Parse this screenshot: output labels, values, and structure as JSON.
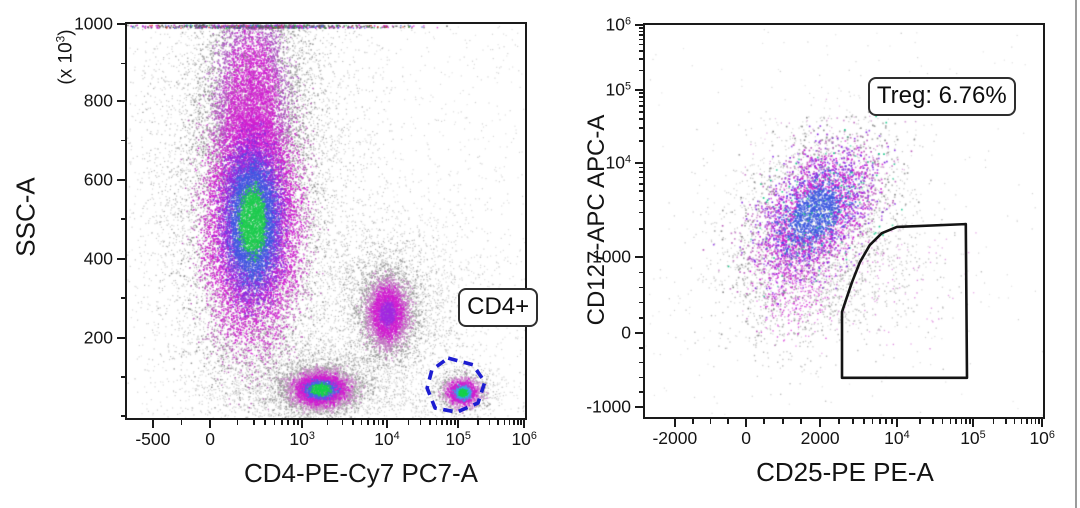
{
  "figure": {
    "type": "flow-cytometry-pseudocolor-dot-plots",
    "background": "#ffffff",
    "divider_color": "#9b9b9b",
    "frame_color": "#1a1a1a"
  },
  "left_plot": {
    "x_label": "CD4-PE-Cy7 PC7-A",
    "y_label": "SSC-A",
    "y_unit_label": "(x 10^3)",
    "gate_label": "CD4+"
  },
  "right_plot": {
    "x_label": "CD25-PE PE-A",
    "y_label": "CD127-APC APC-A",
    "gate_label": "Treg: 6.76%"
  },
  "chart_data": [
    {
      "id": "left",
      "type": "scatter",
      "subtype": "pseudocolor-density-dot-plot",
      "title": "",
      "xlabel": "CD4-PE-Cy7 PC7-A",
      "ylabel": "SSC-A (x 10^3)",
      "x_scale": "biexponential",
      "y_scale": "linear",
      "xlim_ticks": [
        "-500",
        "0",
        "10^3",
        "10^4",
        "10^5",
        "10^6"
      ],
      "ylim": [
        0,
        1000
      ],
      "x_tick_labels": [
        "-500",
        "0",
        "10^3",
        "10^4",
        "10^5",
        "10^6"
      ],
      "x_tick_f": [
        0.065,
        0.209,
        0.44,
        0.653,
        0.832,
        0.998
      ],
      "x_minor_f": [
        0.137,
        0.278,
        0.319,
        0.347,
        0.37,
        0.389,
        0.405,
        0.419,
        0.43,
        0.504,
        0.542,
        0.568,
        0.589,
        0.606,
        0.62,
        0.632,
        0.643,
        0.707,
        0.738,
        0.761,
        0.778,
        0.792,
        0.804,
        0.814,
        0.824,
        0.882,
        0.911,
        0.932,
        0.948,
        0.961,
        0.972,
        0.982,
        0.99
      ],
      "y_tick_labels": [
        "1000",
        "800",
        "600",
        "400",
        "200"
      ],
      "y_tick_f": [
        0.0,
        0.195,
        0.396,
        0.596,
        0.797
      ],
      "y_minor_f": [
        0.0997,
        0.2957,
        0.4955,
        0.6955,
        0.8965,
        0.995
      ],
      "seed": 1234,
      "populations": [
        {
          "name": "background-sparse",
          "kind": "uniform",
          "n": 1500,
          "bands": [
            [
              9,
              "#b3b3b3"
            ]
          ],
          "size": 1.2,
          "alpha": 0.5
        },
        {
          "name": "main-cloud-halo",
          "desc": "CD4 ~0-10^3, SSC 200-1000 x10^3 gray halo",
          "n": 7000,
          "fx": 0.314,
          "fy": 0.4,
          "sx": 0.135,
          "sy": 0.27,
          "bands": [
            [
              9,
              "#9c9c9c"
            ]
          ],
          "size": 1.2,
          "alpha": 0.55
        },
        {
          "name": "main-cloud-upper",
          "desc": "SSC 700-1000 x10^3 magenta column",
          "n": 6000,
          "fx": 0.312,
          "fy": 0.2,
          "sx": 0.058,
          "sy": 0.15,
          "bands": [
            [
              1.1,
              "#d01fd0"
            ],
            [
              1.7,
              "#a94fc0"
            ],
            [
              9,
              "#969696"
            ]
          ],
          "size": 1.5,
          "alpha": 0.8
        },
        {
          "name": "main-cloud-core",
          "desc": "center CD4 ~300, SSC ~560 x10^3, green core",
          "n": 12000,
          "fx": 0.314,
          "fy": 0.5,
          "sx": 0.06,
          "sy": 0.155,
          "bands": [
            [
              0.55,
              "#1ecb4f"
            ],
            [
              0.95,
              "#4356e2"
            ],
            [
              1.35,
              "#8d2be0"
            ],
            [
              2.05,
              "#d01fd0"
            ],
            [
              2.7,
              "#b95fb9"
            ],
            [
              9,
              "#8d8d8d"
            ]
          ],
          "size": 1.5,
          "alpha": 0.88
        },
        {
          "name": "bridge-below-cloud",
          "n": 1500,
          "fx": 0.33,
          "fy": 0.8,
          "sx": 0.1,
          "sy": 0.13,
          "bands": [
            [
              9,
              "#a0a0a0"
            ]
          ],
          "size": 1.2,
          "alpha": 0.5
        },
        {
          "name": "mid-population-halo",
          "desc": "CD4 ~10^4, SSC ~270 x10^3",
          "n": 2400,
          "fx": 0.653,
          "fy": 0.728,
          "sx": 0.072,
          "sy": 0.1,
          "bands": [
            [
              9,
              "#979797"
            ]
          ],
          "size": 1.2,
          "alpha": 0.55
        },
        {
          "name": "mid-population-core",
          "desc": "CD4 ~10^4, SSC ~270 x10^3 magenta",
          "n": 3000,
          "fx": 0.653,
          "fy": 0.733,
          "sx": 0.03,
          "sy": 0.048,
          "bands": [
            [
              0.65,
              "#a22ae0"
            ],
            [
              1.35,
              "#d01fd0"
            ],
            [
              2.1,
              "#c478c4"
            ],
            [
              9,
              "#9a9a9a"
            ]
          ],
          "size": 1.5,
          "alpha": 0.88
        },
        {
          "name": "low-ssc-population-halo",
          "desc": "CD4 ~1.5x10^3, SSC ~85 x10^3",
          "n": 2000,
          "fx": 0.483,
          "fy": 0.915,
          "sx": 0.085,
          "sy": 0.05,
          "bands": [
            [
              9,
              "#9a9a9a"
            ]
          ],
          "size": 1.2,
          "alpha": 0.5
        },
        {
          "name": "low-ssc-population-core",
          "n": 3800,
          "fx": 0.485,
          "fy": 0.926,
          "sx": 0.042,
          "sy": 0.025,
          "bands": [
            [
              0.6,
              "#17d24a"
            ],
            [
              0.95,
              "#4a62e8"
            ],
            [
              1.6,
              "#d01fd0"
            ],
            [
              2.3,
              "#c788c7"
            ],
            [
              9,
              "#9a9a9a"
            ]
          ],
          "size": 1.6,
          "alpha": 0.9
        },
        {
          "name": "bottom-band-sparse",
          "n": 800,
          "fx": 0.55,
          "fy": 0.945,
          "sx": 0.22,
          "sy": 0.035,
          "bands": [
            [
              9,
              "#a6a6a6"
            ]
          ],
          "size": 1.2,
          "alpha": 0.45
        },
        {
          "name": "mid-right-sparse",
          "n": 800,
          "fx": 0.75,
          "fy": 0.7,
          "sx": 0.12,
          "sy": 0.16,
          "bands": [
            [
              9,
              "#a6a6a6"
            ]
          ],
          "size": 1.2,
          "alpha": 0.45
        },
        {
          "name": "cd4pos-halo",
          "desc": "CD4 ~10^5, SSC ~80 x10^3",
          "n": 600,
          "fx": 0.842,
          "fy": 0.928,
          "sx": 0.045,
          "sy": 0.038,
          "bands": [
            [
              9,
              "#9a9a9a"
            ]
          ],
          "size": 1.2,
          "alpha": 0.5
        },
        {
          "name": "cd4pos-core",
          "desc": "gated CD4+ population",
          "n": 1400,
          "fx": 0.842,
          "fy": 0.934,
          "sx": 0.023,
          "sy": 0.019,
          "bands": [
            [
              0.55,
              "#17d24a"
            ],
            [
              0.95,
              "#35a8e8"
            ],
            [
              1.6,
              "#d01fd0"
            ],
            [
              2.4,
              "#cf8ccf"
            ],
            [
              9,
              "#9a9a9a"
            ]
          ],
          "size": 1.6,
          "alpha": 0.9
        },
        {
          "name": "axis-pileup-top",
          "kind": "edge_top",
          "desc": "events at SSC max 1000 x10^3",
          "n": 700,
          "fx": 0.33,
          "sx": 0.16,
          "mix": [
            [
              0.45,
              "#5a5a5a"
            ],
            [
              0.7,
              "#d01fd0"
            ],
            [
              0.78,
              "#19c24a"
            ],
            [
              0.85,
              "#e0392a"
            ],
            [
              1.01,
              "#4356e2"
            ]
          ],
          "size": 1.5,
          "alpha": 0.85
        }
      ],
      "gates": [
        {
          "label": "CD4+",
          "shape": "polygon",
          "style": "dashed",
          "stroke": "#1d1dd1",
          "stroke_width": 3.6,
          "points_f": [
            [
              0.807,
              0.848
            ],
            [
              0.869,
              0.865
            ],
            [
              0.899,
              0.909
            ],
            [
              0.882,
              0.962
            ],
            [
              0.829,
              0.985
            ],
            [
              0.774,
              0.975
            ],
            [
              0.754,
              0.924
            ],
            [
              0.766,
              0.878
            ]
          ],
          "label_f": [
            0.832,
            0.67
          ]
        }
      ]
    },
    {
      "id": "right",
      "type": "scatter",
      "subtype": "pseudocolor-density-dot-plot",
      "title": "",
      "xlabel": "CD25-PE PE-A",
      "ylabel": "CD127-APC APC-A",
      "x_scale": "biexponential",
      "y_scale": "biexponential",
      "stat": {
        "label": "Treg",
        "value_percent": 6.76
      },
      "x_tick_labels": [
        "-2000",
        "0",
        "2000",
        "10^4",
        "10^5",
        "10^6"
      ],
      "x_tick_f": [
        0.075,
        0.254,
        0.44,
        0.633,
        0.824,
        0.998
      ],
      "x_minor_f": [
        0.12,
        0.165,
        0.209,
        0.299,
        0.347,
        0.392,
        0.488,
        0.523,
        0.55,
        0.572,
        0.59,
        0.606,
        0.62,
        0.691,
        0.724,
        0.748,
        0.767,
        0.782,
        0.795,
        0.806,
        0.816,
        0.876,
        0.907,
        0.929,
        0.946,
        0.96,
        0.971,
        0.981,
        0.99
      ],
      "y_tick_labels": [
        "10^6",
        "10^5",
        "10^4",
        "1000",
        "0",
        "-1000"
      ],
      "y_tick_f": [
        0.0,
        0.166,
        0.352,
        0.592,
        0.786,
        0.974
      ],
      "y_minor_f": [
        0.008,
        0.016,
        0.026,
        0.037,
        0.05,
        0.066,
        0.087,
        0.116,
        0.174,
        0.184,
        0.195,
        0.207,
        0.222,
        0.24,
        0.263,
        0.296,
        0.363,
        0.375,
        0.389,
        0.405,
        0.424,
        0.448,
        0.478,
        0.52,
        0.631,
        0.67,
        0.708,
        0.747,
        0.824,
        0.861,
        0.899,
        0.936
      ],
      "seed": 99,
      "populations": [
        {
          "name": "background-sparse",
          "kind": "uniform",
          "n": 240,
          "bands": [
            [
              9,
              "#b5b5b5"
            ]
          ],
          "size": 1.2,
          "alpha": 0.5
        },
        {
          "name": "cd127pos-cloud-halo",
          "desc": "CD25 ~1000-4000, CD127 ~300-8000",
          "n": 1500,
          "fx": 0.415,
          "fy": 0.5,
          "sx": 0.13,
          "sy": 0.135,
          "rho": -0.3,
          "bands": [
            [
              9,
              "#a8a8a8"
            ]
          ],
          "size": 1.3,
          "alpha": 0.5
        },
        {
          "name": "cd127pos-cloud",
          "desc": "CD25 ~2000, CD127 ~2000-5000 mixed speckle",
          "n": 3600,
          "fx": 0.425,
          "fy": 0.48,
          "sx": 0.082,
          "sy": 0.092,
          "rho": -0.45,
          "jitter": 0.9,
          "green_mix": 0.05,
          "bands": [
            [
              0.85,
              "#3f5ae0"
            ],
            [
              1.35,
              "#d01fd0"
            ],
            [
              1.8,
              "#8a2be2"
            ],
            [
              2.4,
              "#bd66bd"
            ],
            [
              9,
              "#8f8f8f"
            ]
          ],
          "size": 1.7,
          "alpha": 0.8
        },
        {
          "name": "cloud-lower-tail",
          "n": 800,
          "fx": 0.37,
          "fy": 0.67,
          "sx": 0.075,
          "sy": 0.09,
          "jitter": 1.0,
          "bands": [
            [
              1.0,
              "#d01fd0"
            ],
            [
              9,
              "#a0a0a0"
            ]
          ],
          "size": 1.4,
          "alpha": 0.6
        },
        {
          "name": "treg-gate-spill",
          "desc": "CD25 high, CD127 low events inside gate",
          "n": 520,
          "fx": 0.555,
          "fy": 0.635,
          "sx": 0.115,
          "sy": 0.085,
          "pink_mix": 0.22,
          "bands": [
            [
              9,
              "#a8a8a8"
            ]
          ],
          "size": 1.4,
          "alpha": 0.6
        },
        {
          "name": "upper-sparse",
          "n": 180,
          "fx": 0.43,
          "fy": 0.34,
          "sx": 0.09,
          "sy": 0.06,
          "bands": [
            [
              1.2,
              "#b0b0b0"
            ],
            [
              9,
              "#c06ac0"
            ]
          ],
          "size": 1.3,
          "alpha": 0.5
        }
      ],
      "gates": [
        {
          "label": "Treg: 6.76%",
          "shape": "polygon",
          "style": "solid",
          "stroke": "#141414",
          "stroke_width": 2.6,
          "points_f": [
            [
              0.495,
              0.9
            ],
            [
              0.495,
              0.732
            ],
            [
              0.505,
              0.701
            ],
            [
              0.52,
              0.656
            ],
            [
              0.54,
              0.605
            ],
            [
              0.565,
              0.561
            ],
            [
              0.595,
              0.531
            ],
            [
              0.633,
              0.515
            ],
            [
              0.806,
              0.508
            ],
            [
              0.809,
              0.9
            ]
          ],
          "label_f": [
            0.56,
            0.133
          ]
        }
      ]
    }
  ]
}
